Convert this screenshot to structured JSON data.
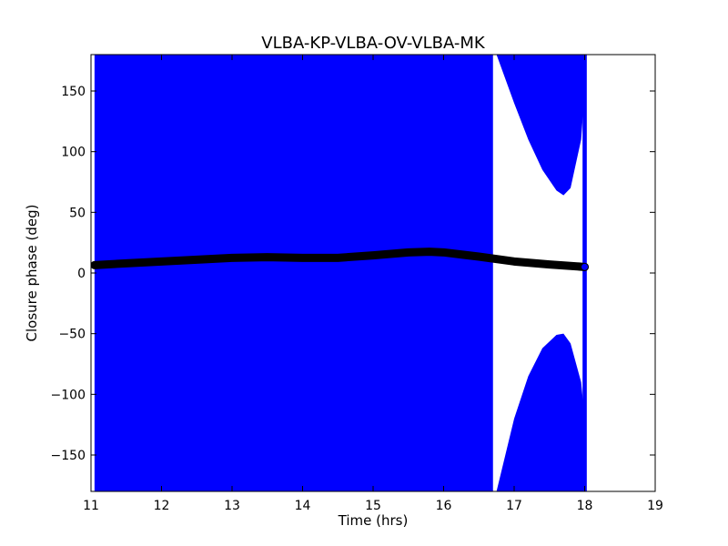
{
  "chart_data": {
    "type": "scatter",
    "title": "VLBA-KP-VLBA-OV-VLBA-MK",
    "xlabel": "Time (hrs)",
    "ylabel": "Closure phase (deg)",
    "xlim": [
      11,
      19
    ],
    "ylim": [
      -180,
      180
    ],
    "xticks": [
      11,
      12,
      13,
      14,
      15,
      16,
      17,
      18,
      19
    ],
    "yticks": [
      -150,
      -100,
      -50,
      0,
      50,
      100,
      150
    ],
    "ytick_labels": [
      "−150",
      "−100",
      "−50",
      "0",
      "50",
      "100",
      "150"
    ],
    "grid": false,
    "legend": "none",
    "series": [
      {
        "role": "measured closure phase with error bars",
        "color": "#0000ff",
        "marker": "circle",
        "points": [
          [
            11.05,
            6
          ],
          [
            11.5,
            8
          ],
          [
            12.0,
            9
          ],
          [
            12.5,
            11
          ],
          [
            13.0,
            12
          ],
          [
            13.5,
            12.5
          ],
          [
            14.0,
            12
          ],
          [
            14.5,
            12
          ],
          [
            15.0,
            14
          ],
          [
            15.5,
            17
          ],
          [
            16.0,
            17.5
          ],
          [
            16.5,
            14
          ],
          [
            17.0,
            10
          ],
          [
            17.5,
            7
          ],
          [
            18.0,
            5
          ]
        ],
        "error_gap": {
          "start_x": 16.7,
          "lower_edge_upper": [
            [
              16.75,
              180
            ],
            [
              17.0,
              140
            ],
            [
              17.2,
              110
            ],
            [
              17.4,
              85
            ],
            [
              17.6,
              68
            ],
            [
              17.7,
              64
            ],
            [
              17.8,
              70
            ],
            [
              17.95,
              110
            ],
            [
              18.0,
              150
            ]
          ],
          "upper_edge_lower": [
            [
              16.75,
              -180
            ],
            [
              17.0,
              -120
            ],
            [
              17.2,
              -85
            ],
            [
              17.4,
              -62
            ],
            [
              17.6,
              -51
            ],
            [
              17.7,
              -50
            ],
            [
              17.8,
              -58
            ],
            [
              17.95,
              -90
            ],
            [
              18.0,
              -120
            ]
          ]
        }
      },
      {
        "role": "model closure phase",
        "color": "#000000",
        "marker": "circle",
        "x": [
          11.05,
          11.5,
          12.0,
          12.5,
          13.0,
          13.5,
          14.0,
          14.5,
          15.0,
          15.5,
          15.8,
          16.0,
          16.5,
          17.0,
          17.5,
          18.0
        ],
        "y": [
          6.5,
          8,
          9.5,
          11,
          12.5,
          13,
          12.5,
          12.5,
          14.5,
          17,
          17.5,
          17,
          13.5,
          9.5,
          7,
          5
        ]
      }
    ]
  },
  "colors": {
    "error_band": "#0000ff",
    "model_line": "#000000",
    "axes": "#000000"
  }
}
